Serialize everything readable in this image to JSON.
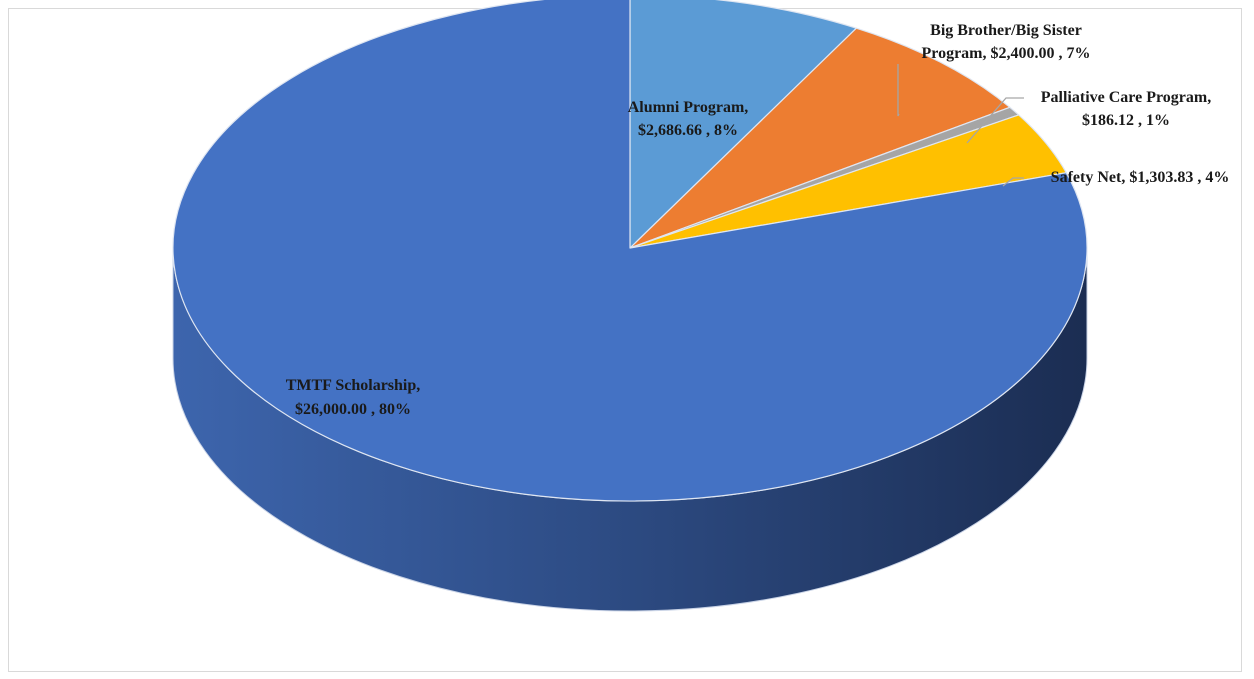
{
  "chart_data": {
    "type": "pie",
    "three_d": true,
    "title": "",
    "legend": "none",
    "slices": [
      {
        "name": "Alumni Program",
        "value": 2686.66,
        "percent": 8,
        "label_lines": [
          "Alumni Program,",
          "$2,686.66 , 8%"
        ],
        "color": "#5b9bd5"
      },
      {
        "name": "Big Brother/Big Sister Program",
        "value": 2400.0,
        "percent": 7,
        "label_lines": [
          "Big Brother/Big Sister",
          "Program,  $2,400.00 , 7%"
        ],
        "color": "#ed7d31"
      },
      {
        "name": "Palliative Care Program",
        "value": 186.12,
        "percent": 1,
        "label_lines": [
          "Palliative Care Program,",
          "$186.12 , 1%"
        ],
        "color": "#a5a5a5"
      },
      {
        "name": "Safety Net",
        "value": 1303.83,
        "percent": 4,
        "label_lines": [
          "Safety Net,  $1,303.83 , 4%"
        ],
        "color": "#ffc000"
      },
      {
        "name": "TMTF Scholarship",
        "value": 26000.0,
        "percent": 80,
        "label_lines": [
          "TMTF Scholarship,",
          "$26,000.00 , 80%"
        ],
        "color": "#4472c4"
      }
    ]
  }
}
